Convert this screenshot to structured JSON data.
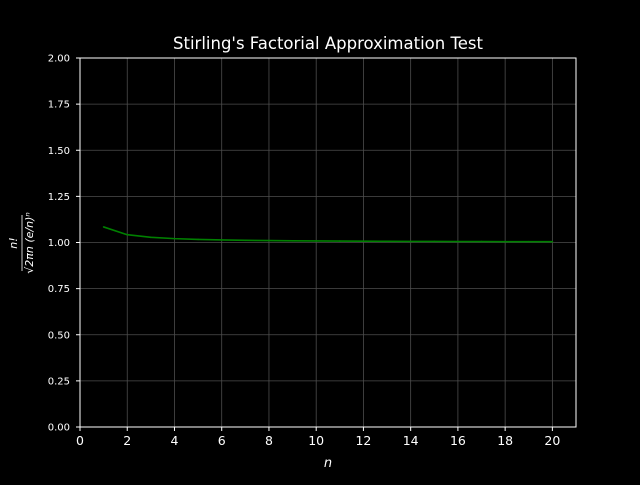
{
  "chart_data": {
    "type": "line",
    "title": "Stirling's Factorial Approximation Test",
    "xlabel": "n",
    "ylabel_numerator": "n!",
    "ylabel_denominator": "√2πn (e/n)ⁿ",
    "xlim": [
      0,
      21
    ],
    "ylim": [
      0,
      2
    ],
    "xticks": [
      0,
      2,
      4,
      6,
      8,
      10,
      12,
      14,
      16,
      18,
      20
    ],
    "yticks": [
      "0.00",
      "0.25",
      "0.50",
      "0.75",
      "1.00",
      "1.25",
      "1.50",
      "1.75",
      "2.00"
    ],
    "grid": true,
    "series": [
      {
        "color": "#008000",
        "x": [
          1,
          2,
          3,
          4,
          5,
          6,
          7,
          8,
          9,
          10,
          11,
          12,
          13,
          14,
          15,
          16,
          17,
          18,
          19,
          20
        ],
        "values": [
          1.0844,
          1.0422,
          1.0281,
          1.021,
          1.0168,
          1.014,
          1.012,
          1.0105,
          1.0093,
          1.0084,
          1.0076,
          1.007,
          1.0064,
          1.006,
          1.0056,
          1.0052,
          1.0049,
          1.0046,
          1.0044,
          1.0042
        ]
      }
    ]
  },
  "colors": {
    "background": "#000000",
    "axes_edge": "#ffffff",
    "grid": "#4d4d4d",
    "text": "#ffffff"
  }
}
